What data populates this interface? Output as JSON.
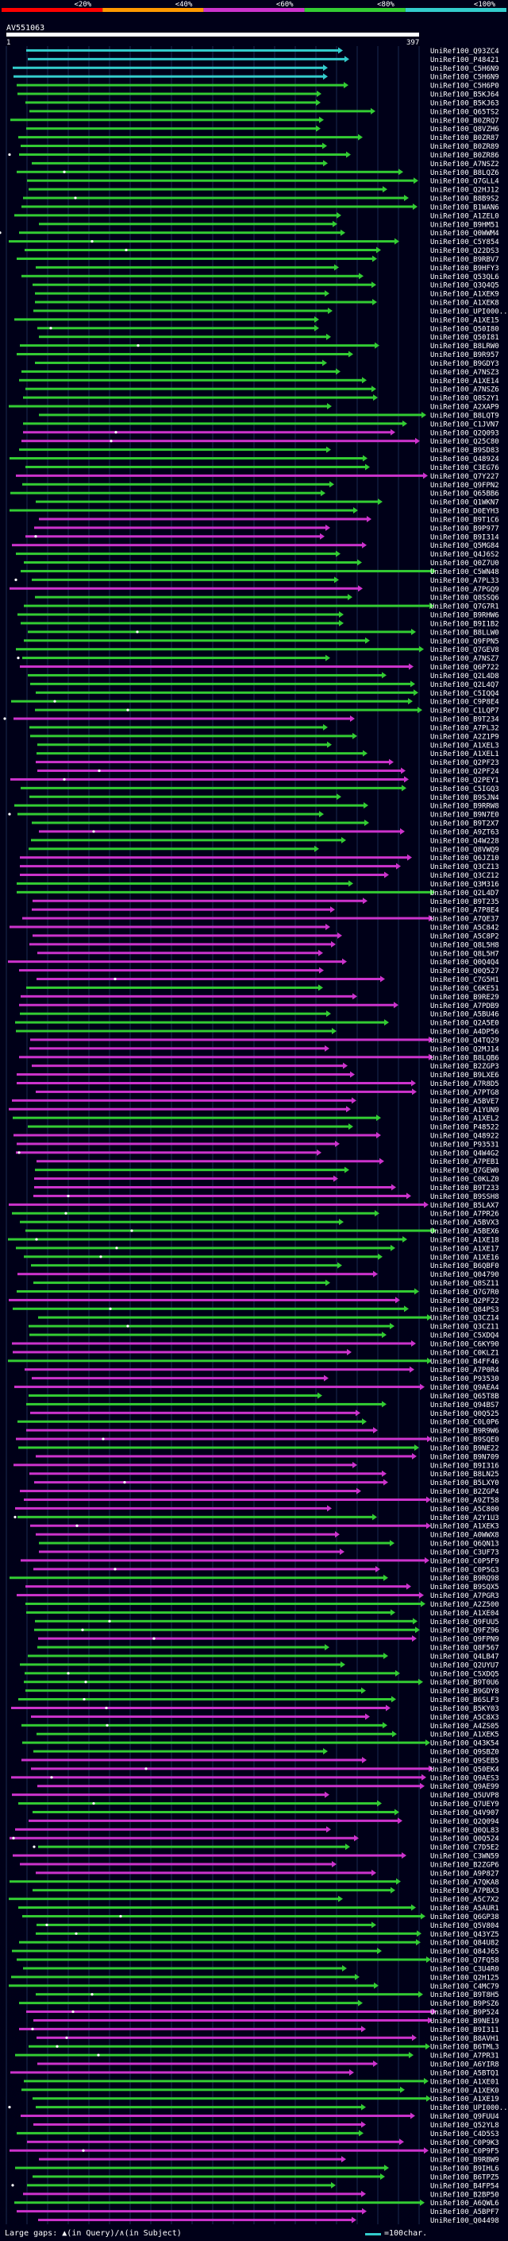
{
  "scale": {
    "bins": [
      {
        "label": "<20%",
        "color": "#ff0000"
      },
      {
        "label": "<40%",
        "color": "#ff9900"
      },
      {
        "label": "<60%",
        "color": "#cc33cc"
      },
      {
        "label": "<80%",
        "color": "#33cc33"
      },
      {
        "label": "<100%",
        "color": "#33cccc"
      }
    ]
  },
  "query": {
    "id": "AV551063",
    "start": "1",
    "end": "397"
  },
  "hits": [
    {
      "id": "UniRef100_Q93ZC4",
      "color": "cyan"
    },
    {
      "id": "UniRef100_P48421",
      "color": "cyan"
    },
    {
      "id": "UniRef100_C5H6N9",
      "color": "cyan"
    },
    {
      "id": "UniRef100_C5H6N9",
      "color": "cyan"
    },
    {
      "id": "UniRef100_C5H6P0",
      "color": "green"
    },
    {
      "id": "UniRef100_B5KJ64",
      "color": "green"
    },
    {
      "id": "UniRef100_B5KJ63",
      "color": "green"
    },
    {
      "id": "UniRef100_Q65TS2",
      "color": "green"
    },
    {
      "id": "UniRef100_B0ZRQ7",
      "color": "green"
    },
    {
      "id": "UniRef100_Q8VZH6",
      "color": "green"
    },
    {
      "id": "UniRef100_B0ZR87",
      "green": true,
      "color": "green"
    },
    {
      "id": "UniRef100_B0ZR89",
      "color": "green"
    },
    {
      "id": "UniRef100_B0ZR86",
      "color": "green"
    },
    {
      "id": "UniRef100_A7NSZ2",
      "color": "green"
    },
    {
      "id": "UniRef100_B8LQZ6",
      "color": "green"
    },
    {
      "id": "UniRef100_Q7GLL4",
      "color": "green"
    },
    {
      "id": "UniRef100_Q2HJ12",
      "color": "green"
    },
    {
      "id": "UniRef100_B8B9S2",
      "color": "green"
    },
    {
      "id": "UniRef100_B1WAN6",
      "color": "green"
    },
    {
      "id": "UniRef100_A1ZEL0",
      "color": "green"
    },
    {
      "id": "UniRef100_B9HM51",
      "color": "green"
    },
    {
      "id": "UniRef100_Q0WWM4",
      "color": "green"
    },
    {
      "id": "UniRef100_C5Y854",
      "color": "green"
    },
    {
      "id": "UniRef100_Q22DS3",
      "color": "green"
    },
    {
      "id": "UniRef100_B9RBV7",
      "color": "green"
    },
    {
      "id": "UniRef100_B9HFY3",
      "color": "green"
    },
    {
      "id": "UniRef100_Q53QL6",
      "color": "green"
    },
    {
      "id": "UniRef100_Q3Q4Q5",
      "color": "green"
    },
    {
      "id": "UniRef100_A1XEK9",
      "color": "green"
    },
    {
      "id": "UniRef100_A1XEK8",
      "color": "green"
    },
    {
      "id": "UniRef100_UPI000...",
      "color": "green"
    },
    {
      "id": "UniRef100_A1XE15",
      "color": "green"
    },
    {
      "id": "UniRef100_Q50I80",
      "color": "green"
    },
    {
      "id": "UniRef100_Q50I81",
      "color": "green"
    },
    {
      "id": "UniRef100_B8LRW0",
      "color": "green"
    },
    {
      "id": "UniRef100_B9R957",
      "color": "green"
    },
    {
      "id": "UniRef100_B9GDY3",
      "color": "green"
    },
    {
      "id": "UniRef100_A7NSZ3",
      "color": "green"
    },
    {
      "id": "UniRef100_A1XE14",
      "color": "green"
    },
    {
      "id": "UniRef100_A7NSZ6",
      "color": "green"
    },
    {
      "id": "UniRef100_Q8S2Y1",
      "color": "green"
    },
    {
      "id": "UniRef100_A2XAP9",
      "color": "green"
    },
    {
      "id": "UniRef100_B8LQT9",
      "color": "green"
    },
    {
      "id": "UniRef100_C1JVN7",
      "color": "green"
    },
    {
      "id": "UniRef100_Q2Q093",
      "color": "magenta"
    },
    {
      "id": "UniRef100_Q25C80",
      "color": "magenta"
    },
    {
      "id": "UniRef100_B9SD83",
      "color": "green"
    },
    {
      "id": "UniRef100_Q48924",
      "color": "green"
    },
    {
      "id": "UniRef100_C3EG76",
      "color": "green"
    },
    {
      "id": "UniRef100_Q7Y227",
      "color": "magenta"
    },
    {
      "id": "UniRef100_Q9FPN2",
      "color": "green"
    },
    {
      "id": "UniRef100_Q65BB6",
      "color": "green"
    },
    {
      "id": "UniRef100_Q1WKN7",
      "color": "green"
    },
    {
      "id": "UniRef100_D0EYH3",
      "color": "green"
    },
    {
      "id": "UniRef100_B9T1C6",
      "color": "magenta"
    },
    {
      "id": "UniRef100_B9P977",
      "color": "magenta"
    },
    {
      "id": "UniRef100_B9I314",
      "color": "magenta"
    },
    {
      "id": "UniRef100_Q5MG84",
      "color": "magenta"
    },
    {
      "id": "UniRef100_Q4J6S2",
      "color": "green"
    },
    {
      "id": "UniRef100_Q0Z7U0",
      "color": "green"
    },
    {
      "id": "UniRef100_C5WN48",
      "color": "green"
    },
    {
      "id": "UniRef100_A7PL33",
      "color": "green"
    },
    {
      "id": "UniRef100_A7PGQ9",
      "color": "magenta"
    },
    {
      "id": "UniRef100_Q8SSQ6",
      "color": "green"
    },
    {
      "id": "UniRef100_Q7G7R1",
      "color": "green"
    },
    {
      "id": "UniRef100_B9RHW6",
      "color": "green"
    },
    {
      "id": "UniRef100_B9I1B2",
      "color": "green"
    },
    {
      "id": "UniRef100_B8LLW0",
      "color": "green"
    },
    {
      "id": "UniRef100_Q9FPN5",
      "color": "green"
    },
    {
      "id": "UniRef100_Q7GEV8",
      "color": "green"
    },
    {
      "id": "UniRef100_A7NSZ7",
      "color": "green"
    },
    {
      "id": "UniRef100_Q6P722",
      "color": "magenta"
    },
    {
      "id": "UniRef100_Q2L4D8",
      "color": "green"
    },
    {
      "id": "UniRef100_Q2L4Q7",
      "color": "green"
    },
    {
      "id": "UniRef100_C5IQQ4",
      "color": "green"
    },
    {
      "id": "UniRef100_C9P8E4",
      "color": "green"
    },
    {
      "id": "UniRef100_C1LQP7",
      "color": "green"
    },
    {
      "id": "UniRef100_B9T234",
      "color": "magenta"
    },
    {
      "id": "UniRef100_A7PL32",
      "color": "green"
    },
    {
      "id": "UniRef100_A2Z1P9",
      "color": "green"
    },
    {
      "id": "UniRef100_A1XEL3",
      "color": "green"
    },
    {
      "id": "UniRef100_A1XEL1",
      "color": "green"
    },
    {
      "id": "UniRef100_Q2PF23",
      "color": "magenta"
    },
    {
      "id": "UniRef100_Q2PF24",
      "color": "magenta"
    },
    {
      "id": "UniRef100_Q2PEY1",
      "color": "magenta"
    },
    {
      "id": "UniRef100_C5IGQ3",
      "color": "green"
    },
    {
      "id": "UniRef100_B9SJN4",
      "color": "green"
    },
    {
      "id": "UniRef100_B9RRW8",
      "color": "green"
    },
    {
      "id": "UniRef100_B9N7E0",
      "color": "green"
    },
    {
      "id": "UniRef100_B9T2X7",
      "color": "green"
    },
    {
      "id": "UniRef100_A9ZT63",
      "color": "magenta"
    },
    {
      "id": "UniRef100_Q4W228",
      "color": "green"
    },
    {
      "id": "UniRef100_Q8VWQ9",
      "color": "green"
    },
    {
      "id": "UniRef100_Q6JZ10",
      "color": "magenta"
    },
    {
      "id": "UniRef100_Q3CZ13",
      "color": "magenta"
    },
    {
      "id": "UniRef100_Q3CZ12",
      "color": "magenta"
    },
    {
      "id": "UniRef100_Q3M316",
      "color": "green"
    },
    {
      "id": "UniRef100_Q2L4D7",
      "color": "green"
    },
    {
      "id": "UniRef100_B9T235",
      "color": "magenta"
    },
    {
      "id": "UniRef100_A7P8E4",
      "color": "magenta"
    },
    {
      "id": "UniRef100_A7QE37",
      "color": "magenta"
    },
    {
      "id": "UniRef100_A5C842",
      "color": "magenta"
    },
    {
      "id": "UniRef100_A5C8P2",
      "color": "magenta"
    },
    {
      "id": "UniRef100_Q8L5H8",
      "color": "magenta"
    },
    {
      "id": "UniRef100_Q8L5H7",
      "color": "magenta"
    },
    {
      "id": "UniRef100_Q0Q4Q4",
      "color": "magenta"
    },
    {
      "id": "UniRef100_Q0Q527",
      "color": "magenta"
    },
    {
      "id": "UniRef100_C7G5H1",
      "color": "magenta"
    },
    {
      "id": "UniRef100_C6KE51",
      "color": "green"
    },
    {
      "id": "UniRef100_B9RE29",
      "color": "magenta"
    },
    {
      "id": "UniRef100_A7PDB9",
      "color": "magenta"
    },
    {
      "id": "UniRef100_A5BU46",
      "color": "green"
    },
    {
      "id": "UniRef100_Q2A5E0",
      "color": "green"
    },
    {
      "id": "UniRef100_A4DP56",
      "color": "green"
    },
    {
      "id": "UniRef100_Q4TQ29",
      "color": "magenta"
    },
    {
      "id": "UniRef100_Q2MJ14",
      "color": "magenta"
    },
    {
      "id": "UniRef100_B8LQB6",
      "color": "magenta"
    },
    {
      "id": "UniRef100_B2ZGP3",
      "color": "magenta"
    },
    {
      "id": "UniRef100_B9LXE6",
      "color": "magenta"
    },
    {
      "id": "UniRef100_A7R8D5",
      "color": "magenta"
    },
    {
      "id": "UniRef100_A7PTG8",
      "color": "magenta"
    },
    {
      "id": "UniRef100_A5BVE7",
      "color": "magenta"
    },
    {
      "id": "UniRef100_A1YUN9",
      "color": "magenta"
    },
    {
      "id": "UniRef100_A1XEL2",
      "color": "green"
    },
    {
      "id": "UniRef100_P48522",
      "color": "green"
    },
    {
      "id": "UniRef100_Q48922",
      "color": "magenta"
    },
    {
      "id": "UniRef100_P93531",
      "color": "magenta"
    },
    {
      "id": "UniRef100_Q4W4G2",
      "color": "magenta"
    },
    {
      "id": "UniRef100_A7PEB1",
      "color": "magenta"
    },
    {
      "id": "UniRef100_Q7GEW0",
      "color": "green"
    },
    {
      "id": "UniRef100_C0KLZ0",
      "color": "magenta"
    },
    {
      "id": "UniRef100_B9T233",
      "color": "magenta"
    },
    {
      "id": "UniRef100_B9SSH8",
      "color": "magenta"
    },
    {
      "id": "UniRef100_B5LAX7",
      "color": "magenta"
    },
    {
      "id": "UniRef100_A7PR26",
      "color": "green"
    },
    {
      "id": "UniRef100_A5BVX3",
      "color": "green"
    },
    {
      "id": "UniRef100_A5BEX6",
      "color": "green"
    },
    {
      "id": "UniRef100_A1XE18",
      "color": "green"
    },
    {
      "id": "UniRef100_A1XE17",
      "color": "green"
    },
    {
      "id": "UniRef100_A1XE16",
      "color": "green"
    },
    {
      "id": "UniRef100_B6QBF0",
      "color": "green"
    },
    {
      "id": "UniRef100_Q04790",
      "color": "magenta"
    },
    {
      "id": "UniRef100_Q8SZ11",
      "color": "green"
    },
    {
      "id": "UniRef100_Q7G7R0",
      "color": "green"
    },
    {
      "id": "UniRef100_Q2PF22",
      "color": "magenta"
    },
    {
      "id": "UniRef100_Q84PS3",
      "color": "green"
    },
    {
      "id": "UniRef100_Q3CZ14",
      "color": "green"
    },
    {
      "id": "UniRef100_Q3CZ11",
      "color": "green"
    },
    {
      "id": "UniRef100_C5XDQ4",
      "color": "green"
    },
    {
      "id": "UniRef100_C6KY90",
      "color": "magenta"
    },
    {
      "id": "UniRef100_C0KLZ1",
      "color": "magenta"
    },
    {
      "id": "UniRef100_B4FF46",
      "color": "green"
    },
    {
      "id": "UniRef100_A7P0R4",
      "color": "magenta"
    },
    {
      "id": "UniRef100_P93530",
      "color": "magenta"
    },
    {
      "id": "UniRef100_Q9AEA4",
      "color": "magenta"
    },
    {
      "id": "UniRef100_Q65T8B",
      "color": "green"
    },
    {
      "id": "UniRef100_Q94BS7",
      "color": "green"
    },
    {
      "id": "UniRef100_Q0Q525",
      "color": "magenta"
    },
    {
      "id": "UniRef100_C0L0P6",
      "color": "green"
    },
    {
      "id": "UniRef100_B9R9W6",
      "color": "magenta"
    },
    {
      "id": "UniRef100_B9SQE0",
      "color": "magenta"
    },
    {
      "id": "UniRef100_B9NE22",
      "color": "green"
    },
    {
      "id": "UniRef100_B9N709",
      "color": "magenta"
    },
    {
      "id": "UniRef100_B9I316",
      "color": "magenta"
    },
    {
      "id": "UniRef100_B8LN25",
      "color": "magenta"
    },
    {
      "id": "UniRef100_B5LXY0",
      "color": "magenta"
    },
    {
      "id": "UniRef100_B2ZGP4",
      "color": "magenta"
    },
    {
      "id": "UniRef100_A9ZT58",
      "color": "magenta"
    },
    {
      "id": "UniRef100_A5C800",
      "color": "magenta"
    },
    {
      "id": "UniRef100_A2Y1U3",
      "color": "green"
    },
    {
      "id": "UniRef100_A1XEK3",
      "color": "magenta"
    },
    {
      "id": "UniRef100_A0WWX8",
      "color": "magenta"
    },
    {
      "id": "UniRef100_Q6QN13",
      "color": "green"
    },
    {
      "id": "UniRef100_C3UF73",
      "color": "magenta"
    },
    {
      "id": "UniRef100_C0P5F9",
      "color": "magenta"
    },
    {
      "id": "UniRef100_C0P5G3",
      "color": "magenta"
    },
    {
      "id": "UniRef100_B9RQ98",
      "color": "green"
    },
    {
      "id": "UniRef100_B9SQX5",
      "color": "magenta"
    },
    {
      "id": "UniRef100_A7PGR3",
      "color": "magenta"
    },
    {
      "id": "UniRef100_A2Z500",
      "color": "green"
    },
    {
      "id": "UniRef100_A1XE04",
      "color": "green"
    },
    {
      "id": "UniRef100_Q9FUU5",
      "color": "green"
    },
    {
      "id": "UniRef100_Q9FZ96",
      "color": "green"
    },
    {
      "id": "UniRef100_Q9FPN9",
      "color": "magenta"
    },
    {
      "id": "UniRef100_Q8F567",
      "color": "green"
    },
    {
      "id": "UniRef100_Q4LB47",
      "color": "green"
    },
    {
      "id": "UniRef100_Q2UYU7",
      "color": "green"
    },
    {
      "id": "UniRef100_C5XDQ5",
      "color": "green"
    },
    {
      "id": "UniRef100_B9T0U6",
      "color": "green"
    },
    {
      "id": "UniRef100_B9GDY8",
      "color": "green"
    },
    {
      "id": "UniRef100_B6SLF3",
      "color": "green"
    },
    {
      "id": "UniRef100_B5KY03",
      "color": "magenta"
    },
    {
      "id": "UniRef100_A5C8X3",
      "color": "magenta"
    },
    {
      "id": "UniRef100_A4ZS05",
      "color": "green"
    },
    {
      "id": "UniRef100_A1XEK5",
      "color": "green"
    },
    {
      "id": "UniRef100_Q43K54",
      "color": "green"
    },
    {
      "id": "UniRef100_Q9SBZ0",
      "color": "green"
    },
    {
      "id": "UniRef100_Q9SEB5",
      "color": "magenta"
    },
    {
      "id": "UniRef100_Q50EK4",
      "color": "magenta"
    },
    {
      "id": "UniRef100_Q9AES3",
      "color": "magenta"
    },
    {
      "id": "UniRef100_Q9AE99",
      "color": "magenta"
    },
    {
      "id": "UniRef100_Q5UVP8",
      "color": "magenta"
    },
    {
      "id": "UniRef100_Q7UEY9",
      "color": "green"
    },
    {
      "id": "UniRef100_Q4V907",
      "color": "green"
    },
    {
      "id": "UniRef100_Q2Q094",
      "color": "magenta"
    },
    {
      "id": "UniRef100_Q0QL83",
      "color": "magenta"
    },
    {
      "id": "UniRef100_Q0Q524",
      "color": "magenta"
    },
    {
      "id": "UniRef100_C7D5E2",
      "color": "green"
    },
    {
      "id": "UniRef100_C3WN59",
      "color": "magenta"
    },
    {
      "id": "UniRef100_B2ZGP6",
      "color": "magenta"
    },
    {
      "id": "UniRef100_A9P827",
      "color": "magenta"
    },
    {
      "id": "UniRef100_A7QKA8",
      "color": "green"
    },
    {
      "id": "UniRef100_A7PBX3",
      "color": "green"
    },
    {
      "id": "UniRef100_A5C7X2",
      "color": "green"
    },
    {
      "id": "UniRef100_A5AUR1",
      "color": "green"
    },
    {
      "id": "UniRef100_Q6GP38",
      "color": "green"
    },
    {
      "id": "UniRef100_Q5V804",
      "color": "green"
    },
    {
      "id": "UniRef100_Q43YZ5",
      "color": "green"
    },
    {
      "id": "UniRef100_Q84U82",
      "color": "green"
    },
    {
      "id": "UniRef100_Q84J65",
      "color": "green"
    },
    {
      "id": "UniRef100_Q7FQ58",
      "color": "green"
    },
    {
      "id": "UniRef100_C3U4R0",
      "color": "green"
    },
    {
      "id": "UniRef100_Q2H125",
      "color": "green"
    },
    {
      "id": "UniRef100_C4MC79",
      "color": "green"
    },
    {
      "id": "UniRef100_B9T8H5",
      "color": "green"
    },
    {
      "id": "UniRef100_B9PSZ6",
      "color": "green"
    },
    {
      "id": "UniRef100_B9P524",
      "color": "magenta"
    },
    {
      "id": "UniRef100_B9NE19",
      "color": "magenta"
    },
    {
      "id": "UniRef100_B9I311",
      "color": "magenta"
    },
    {
      "id": "UniRef100_B8AVH1",
      "color": "magenta"
    },
    {
      "id": "UniRef100_B6TML3",
      "color": "green"
    },
    {
      "id": "UniRef100_A7PR31",
      "color": "green"
    },
    {
      "id": "UniRef100_A6YIR8",
      "color": "magenta"
    },
    {
      "id": "UniRef100_A5BTQ1",
      "color": "magenta"
    },
    {
      "id": "UniRef100_A1XE01",
      "color": "green"
    },
    {
      "id": "UniRef100_A1XEK0",
      "color": "green"
    },
    {
      "id": "UniRef100_A1XE19",
      "color": "green"
    },
    {
      "id": "UniRef100_UPI000...",
      "color": "green"
    },
    {
      "id": "UniRef100_Q9FUU4",
      "color": "magenta"
    },
    {
      "id": "UniRef100_Q52YL8",
      "color": "magenta"
    },
    {
      "id": "UniRef100_C4D5S3",
      "color": "green"
    },
    {
      "id": "UniRef100_C0P9K3",
      "color": "magenta"
    },
    {
      "id": "UniRef100_C0P9F5",
      "color": "magenta"
    },
    {
      "id": "UniRef100_B9RBW9",
      "color": "magenta"
    },
    {
      "id": "UniRef100_B9IHL6",
      "color": "green"
    },
    {
      "id": "UniRef100_B6TPZ5",
      "color": "green"
    },
    {
      "id": "UniRef100_B4FP54",
      "color": "green"
    },
    {
      "id": "UniRef100_B2BP50",
      "color": "magenta"
    },
    {
      "id": "UniRef100_A6QWL6",
      "color": "green"
    },
    {
      "id": "UniRef100_A5BPF7",
      "color": "magenta"
    },
    {
      "id": "UniRef100_Q04498",
      "color": "magenta"
    }
  ],
  "legend": {
    "large_gaps_label": "Large gaps:",
    "in_query_label": "(in Query)",
    "sep": "/",
    "in_subject_label": "(in Subject)",
    "scale_label": "=100char."
  }
}
